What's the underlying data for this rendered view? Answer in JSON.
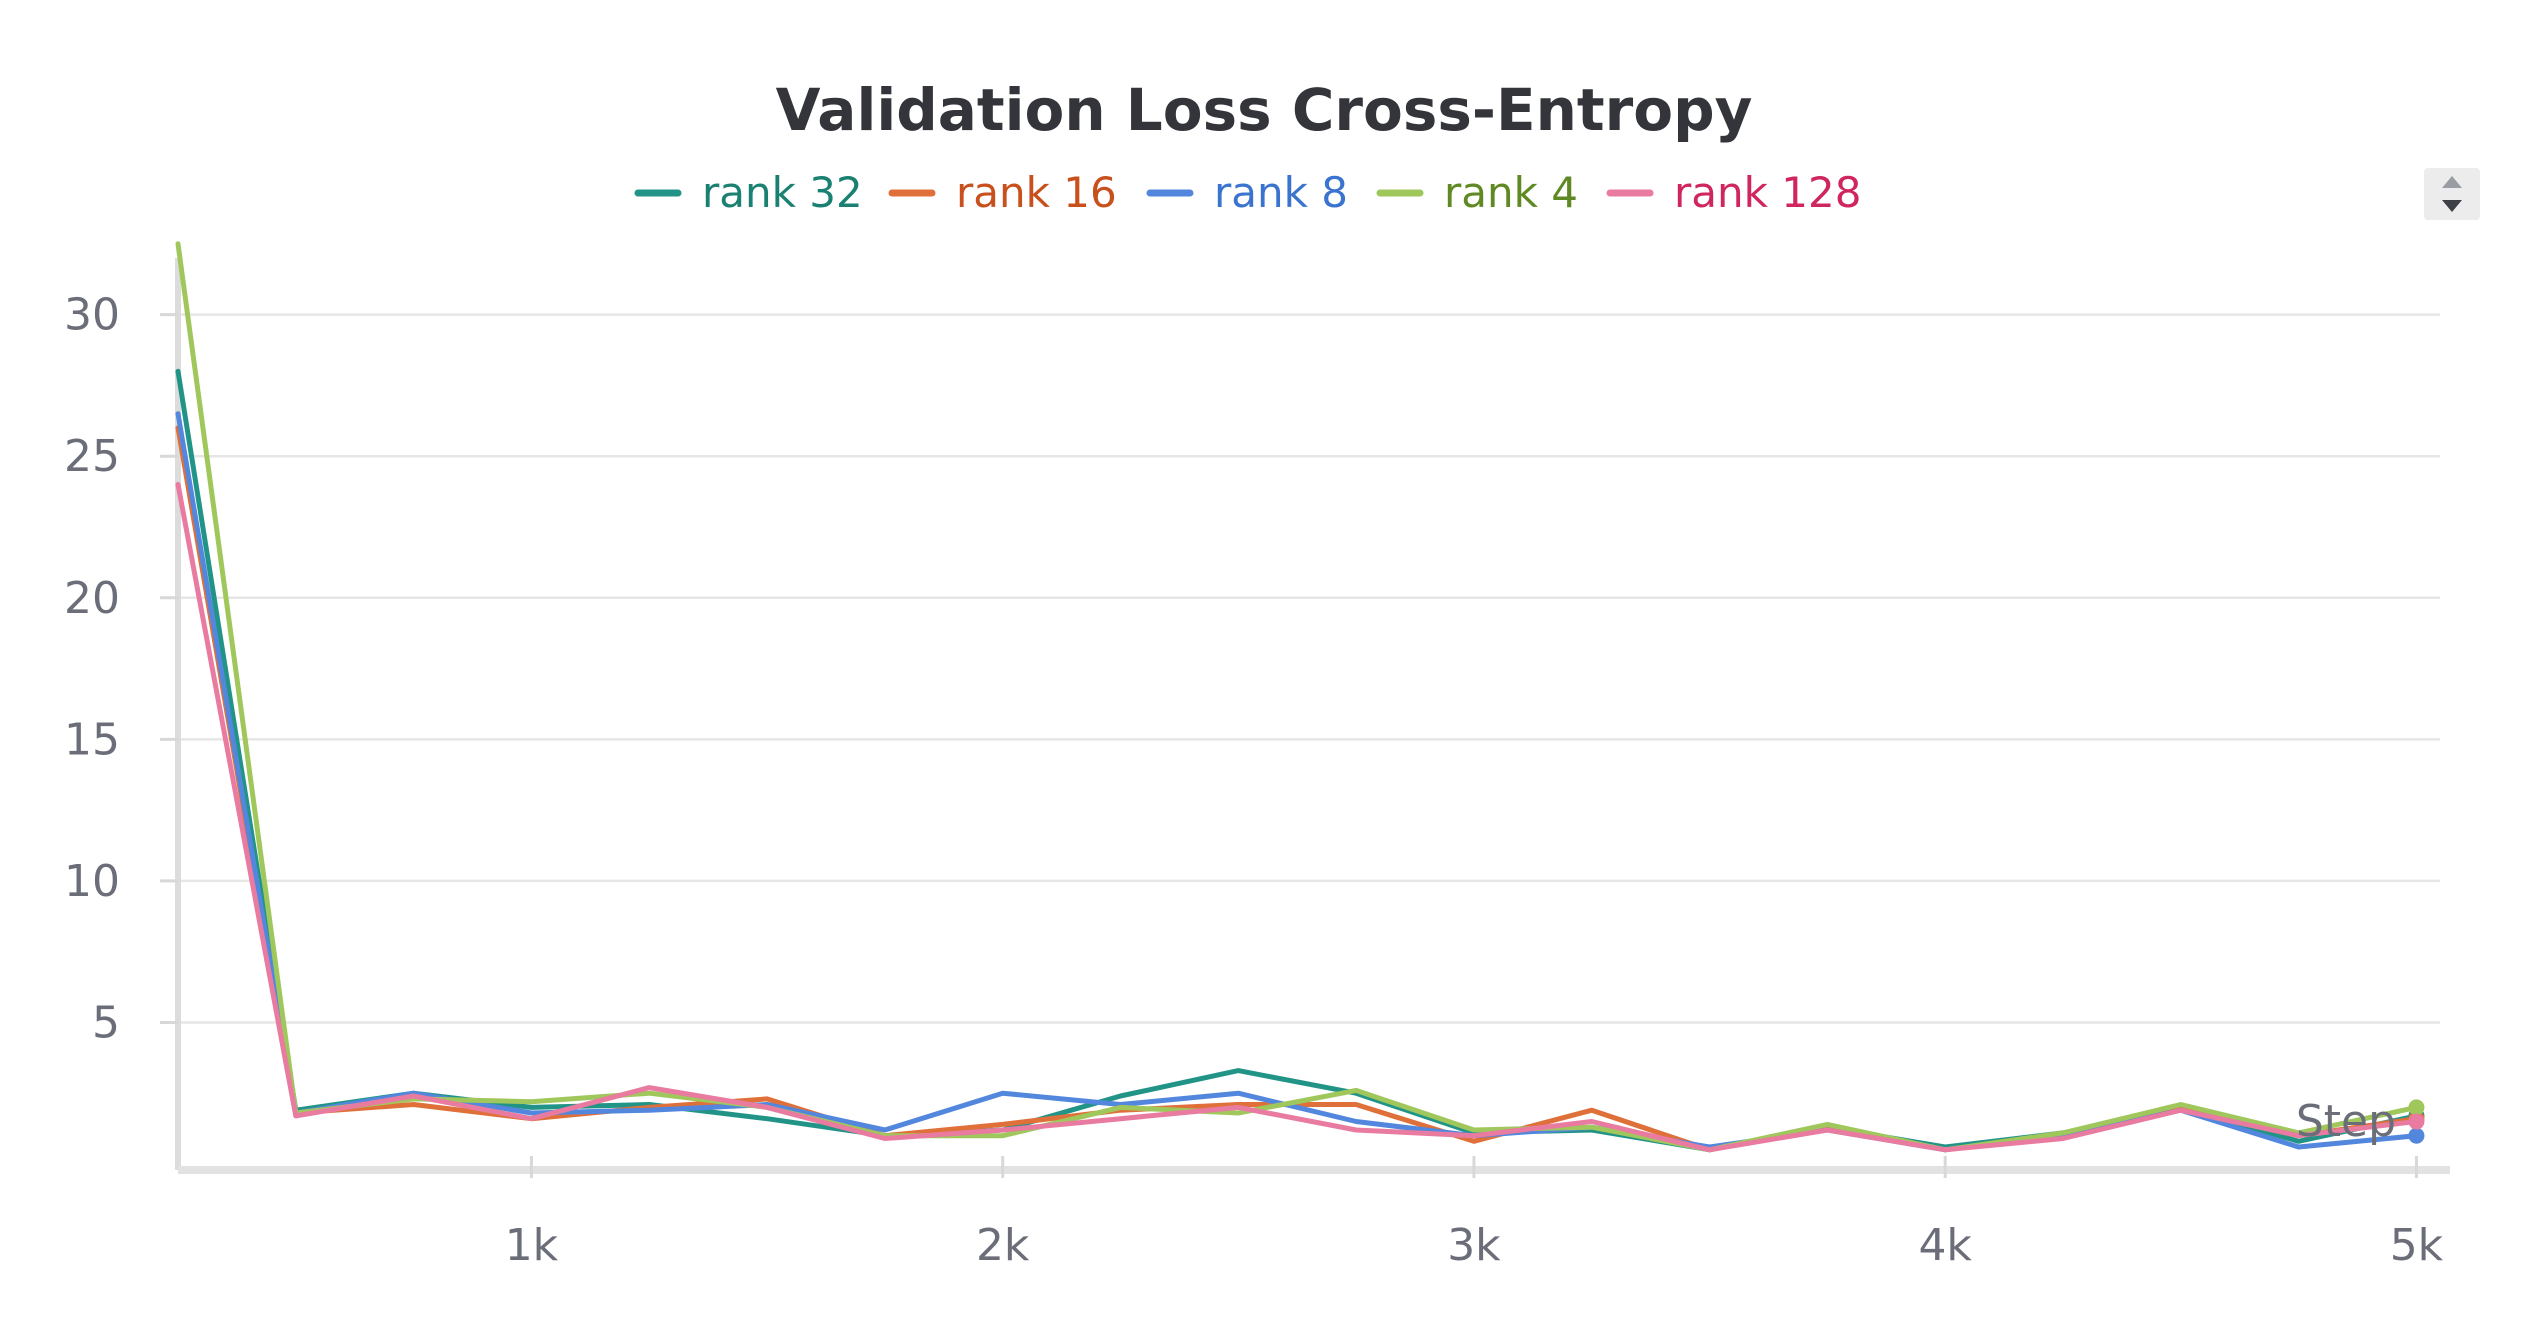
{
  "chart_data": {
    "type": "line",
    "title": "Validation Loss Cross-Entropy",
    "xlabel": "Step",
    "ylabel": "",
    "xlim": [
      250,
      5050
    ],
    "ylim": [
      0,
      32
    ],
    "xticks": [
      1000,
      2000,
      3000,
      4000,
      5000
    ],
    "xtick_labels": [
      "1k",
      "2k",
      "3k",
      "4k",
      "5k"
    ],
    "yticks": [
      5,
      10,
      15,
      20,
      25,
      30
    ],
    "ytick_labels": [
      "5",
      "10",
      "15",
      "20",
      "25",
      "30"
    ],
    "grid": true,
    "legend_position": "top-center",
    "x": [
      250,
      500,
      750,
      1000,
      1250,
      1500,
      1750,
      2000,
      2250,
      2500,
      2750,
      3000,
      3250,
      3500,
      3750,
      4000,
      4250,
      4500,
      4750,
      5000
    ],
    "series": [
      {
        "name": "rank 32",
        "color": "#229487",
        "text_color": "#1a8072",
        "values": [
          28,
          1.9,
          2.5,
          2.0,
          2.1,
          1.6,
          1.0,
          1.2,
          2.4,
          3.3,
          2.5,
          1.1,
          1.2,
          0.5,
          1.3,
          0.6,
          1.1,
          2.0,
          0.8,
          1.7
        ]
      },
      {
        "name": "rank 16",
        "color": "#e0703a",
        "text_color": "#c8501c",
        "values": [
          26,
          1.8,
          2.1,
          1.6,
          2.0,
          2.3,
          1.0,
          1.4,
          1.9,
          2.1,
          2.1,
          0.8,
          1.9,
          0.5,
          1.3,
          0.5,
          1.0,
          2.0,
          1.0,
          1.6
        ]
      },
      {
        "name": "rank 8",
        "color": "#5387dd",
        "text_color": "#3b74cf",
        "values": [
          26.5,
          1.8,
          2.5,
          1.8,
          1.9,
          2.1,
          1.2,
          2.5,
          2.1,
          2.5,
          1.5,
          1.0,
          1.3,
          0.6,
          1.2,
          0.5,
          1.0,
          1.9,
          0.6,
          1.0
        ]
      },
      {
        "name": "rank 4",
        "color": "#a0c75c",
        "text_color": "#5f8a23",
        "values": [
          32.5,
          1.8,
          2.3,
          2.2,
          2.5,
          2.0,
          1.0,
          1.0,
          2.0,
          1.8,
          2.6,
          1.2,
          1.3,
          0.5,
          1.4,
          0.5,
          1.1,
          2.1,
          1.1,
          2.0
        ]
      },
      {
        "name": "rank 128",
        "color": "#e97ba1",
        "text_color": "#d0265f",
        "values": [
          24,
          1.7,
          2.4,
          1.6,
          2.7,
          2.0,
          0.9,
          1.2,
          1.6,
          2.0,
          1.2,
          1.0,
          1.5,
          0.5,
          1.2,
          0.5,
          0.9,
          1.9,
          1.0,
          1.5
        ]
      }
    ]
  }
}
